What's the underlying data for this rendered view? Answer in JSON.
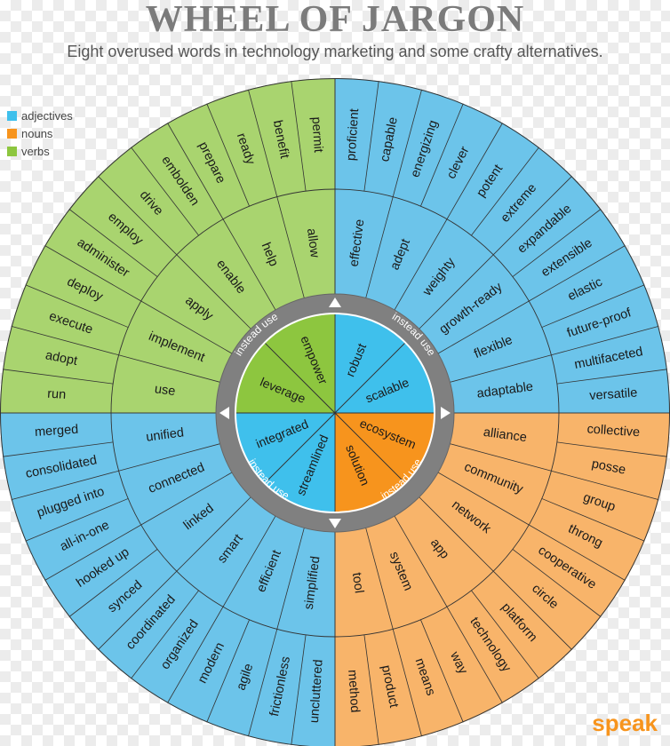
{
  "title": "WHEEL OF JARGON",
  "subtitle": "Eight overused words in technology marketing and some crafty alternatives.",
  "legend": [
    {
      "label": "adjectives",
      "color": "#3fc0ec"
    },
    {
      "label": "nouns",
      "color": "#f7941d"
    },
    {
      "label": "verbs",
      "color": "#8dc63f"
    }
  ],
  "colors": {
    "adjectives_outer": "#6cc4ea",
    "nouns_outer": "#f8b46a",
    "verbs_outer": "#a9d46f",
    "adjectives_core": "#3fc0ec",
    "nouns_core": "#f7941d",
    "verbs_core": "#8dc63f",
    "ring": "#808080",
    "line": "#333333"
  },
  "ring_label": "instead use",
  "brand": "speak",
  "quadrants": [
    {
      "id": "top-left",
      "category": "adjectives",
      "core": [
        "robust",
        "scalable"
      ],
      "middle": [
        "effective",
        "adept",
        "weighty",
        "growth-ready",
        "flexible",
        "adaptable"
      ],
      "outer": [
        "proficient",
        "capable",
        "energizing",
        "clever",
        "potent",
        "extreme",
        "expandable",
        "extensible",
        "elastic",
        "future-proof",
        "multifaceted",
        "versatile"
      ]
    },
    {
      "id": "top-right",
      "category": "nouns",
      "core": [
        "ecosystem",
        "solution"
      ],
      "middle": [
        "alliance",
        "community",
        "network",
        "app",
        "system",
        "tool"
      ],
      "outer": [
        "collective",
        "posse",
        "group",
        "throng",
        "cooperative",
        "circle",
        "platform",
        "technology",
        "way",
        "means",
        "product",
        "method"
      ]
    },
    {
      "id": "bottom-right",
      "category": "adjectives",
      "core": [
        "streamlined",
        "integrated"
      ],
      "middle": [
        "simplified",
        "efficient",
        "smart",
        "linked",
        "connected",
        "unified"
      ],
      "outer": [
        "uncluttered",
        "frictionless",
        "agile",
        "modern",
        "organized",
        "coordinated",
        "synced",
        "hooked up",
        "all-in-one",
        "plugged into",
        "consolidated",
        "merged"
      ]
    },
    {
      "id": "bottom-left",
      "category": "verbs",
      "core": [
        "leverage",
        "empower"
      ],
      "middle": [
        "use",
        "implement",
        "apply",
        "enable",
        "help",
        "allow"
      ],
      "outer": [
        "run",
        "adopt",
        "execute",
        "deploy",
        "administer",
        "employ",
        "drive",
        "embolden",
        "prepare",
        "ready",
        "benefit",
        "permit"
      ]
    }
  ]
}
